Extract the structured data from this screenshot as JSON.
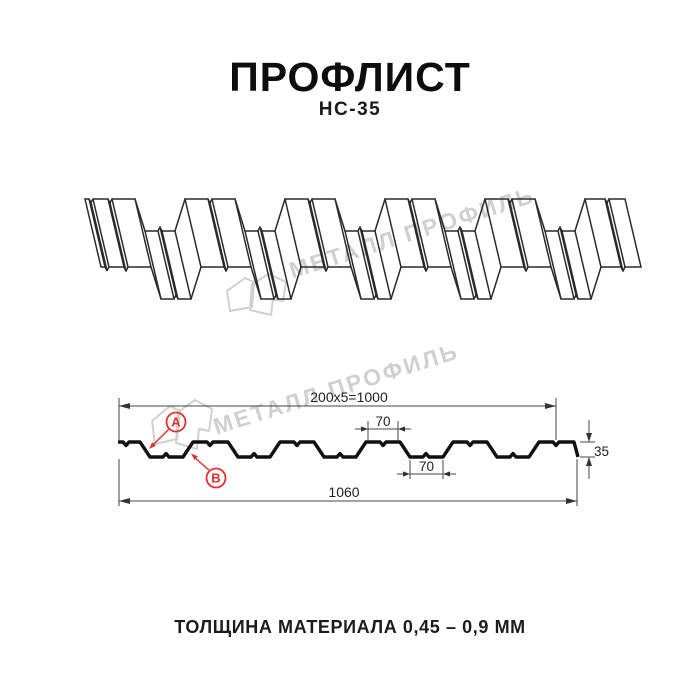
{
  "header": {
    "title": "ПРОФЛИСТ",
    "subtitle": "НС-35"
  },
  "watermark": {
    "brand": "МЕТАЛЛ ПРОФИЛЬ"
  },
  "cross_section": {
    "dim_top_total": "200x5=1000",
    "dim_top_flange": "70",
    "dim_bottom_flange": "70",
    "dim_overall_width": "1060",
    "dim_height": "35",
    "callout_a": "A",
    "callout_b": "B"
  },
  "footer": {
    "note": "ТОЛЩИНА МАТЕРИАЛА 0,45 – 0,9 ММ"
  },
  "colors": {
    "accent_red": "#e4302a",
    "line_dark": "#222222",
    "watermark_gray": "#d0d0d0"
  }
}
